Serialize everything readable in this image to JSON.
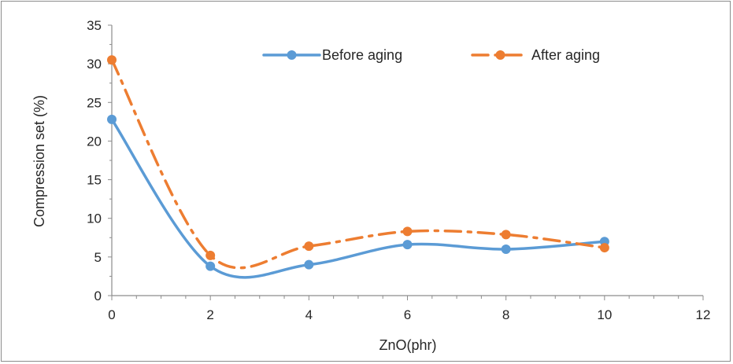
{
  "chart_data": {
    "type": "line",
    "title": "",
    "xlabel": "ZnO(phr)",
    "ylabel": "Compression set (%)",
    "xlim": [
      0,
      12
    ],
    "ylim": [
      0,
      35
    ],
    "x_ticks": [
      "0",
      "2",
      "4",
      "6",
      "8",
      "10",
      "12"
    ],
    "y_ticks": [
      "0",
      "5",
      "10",
      "15",
      "20",
      "25",
      "30",
      "35"
    ],
    "grid": false,
    "legend_position": "top-right",
    "smooth": true,
    "series": [
      {
        "name": "Before aging",
        "color": "#5b9bd5",
        "line_style": "solid",
        "x": [
          0,
          2,
          4,
          6,
          8,
          10
        ],
        "y": [
          22.8,
          3.8,
          4.0,
          6.6,
          6.0,
          7.0
        ]
      },
      {
        "name": "After aging",
        "color": "#ed7d31",
        "line_style": "dash-dot",
        "x": [
          0,
          2,
          4,
          6,
          8,
          10
        ],
        "y": [
          30.5,
          5.2,
          6.4,
          8.3,
          7.9,
          6.2
        ]
      }
    ]
  }
}
